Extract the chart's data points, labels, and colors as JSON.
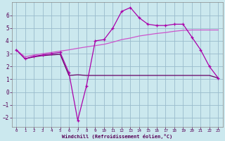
{
  "xlabel": "Windchill (Refroidissement éolien,°C)",
  "background_color": "#cbe8ee",
  "grid_color": "#99bbcc",
  "xlim": [
    -0.5,
    23.5
  ],
  "ylim": [
    -2.7,
    7.0
  ],
  "yticks": [
    -2,
    -1,
    0,
    1,
    2,
    3,
    4,
    5,
    6
  ],
  "xticks": [
    0,
    1,
    2,
    3,
    4,
    5,
    6,
    7,
    8,
    9,
    10,
    11,
    12,
    13,
    14,
    15,
    16,
    17,
    18,
    19,
    20,
    21,
    22,
    23
  ],
  "line1_x": [
    0,
    1,
    2,
    3,
    4,
    5,
    6,
    7,
    8,
    9,
    10,
    11,
    12,
    13,
    14,
    15,
    16,
    17,
    18,
    19,
    20,
    21,
    22,
    23
  ],
  "line1_y": [
    3.3,
    2.6,
    2.8,
    2.9,
    3.0,
    3.1,
    1.5,
    -2.2,
    0.5,
    4.0,
    4.1,
    5.0,
    6.3,
    6.6,
    5.8,
    5.3,
    5.2,
    5.2,
    5.3,
    5.3,
    4.3,
    3.3,
    2.0,
    1.1
  ],
  "line2_x": [
    0,
    1,
    2,
    3,
    4,
    5,
    6,
    7,
    8,
    9,
    10,
    11,
    12,
    13,
    14,
    15,
    16,
    17,
    18,
    19,
    20,
    21,
    22,
    23
  ],
  "line2_y": [
    3.3,
    2.6,
    2.75,
    2.85,
    2.9,
    2.95,
    1.3,
    1.35,
    1.3,
    1.3,
    1.3,
    1.3,
    1.3,
    1.3,
    1.3,
    1.3,
    1.3,
    1.3,
    1.3,
    1.3,
    1.3,
    1.3,
    1.3,
    1.1
  ],
  "line3_x": [
    0,
    1,
    2,
    3,
    4,
    5,
    6,
    7,
    8,
    9,
    10,
    11,
    12,
    13,
    14,
    15,
    16,
    17,
    18,
    19,
    20,
    21,
    22,
    23
  ],
  "line3_y": [
    3.3,
    2.75,
    2.9,
    3.0,
    3.1,
    3.2,
    3.3,
    3.42,
    3.53,
    3.63,
    3.73,
    3.9,
    4.1,
    4.22,
    4.38,
    4.48,
    4.58,
    4.65,
    4.75,
    4.82,
    4.85,
    4.85,
    4.85,
    4.85
  ],
  "line1_color": "#aa00aa",
  "line2_color": "#660066",
  "line3_color": "#cc55cc",
  "xlabel_color": "#550055",
  "tick_color": "#550055",
  "spine_color": "#888888"
}
